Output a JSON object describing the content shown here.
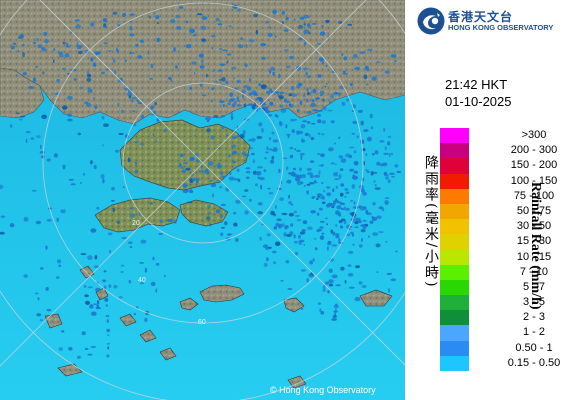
{
  "header": {
    "org_name_cn": "香港天文台",
    "org_name_en": "HONG KONG OBSERVATORY",
    "logo_icon": "hko-logo-icon"
  },
  "timestamp": {
    "time": "21:42 HKT",
    "date": "01-10-2025"
  },
  "legend": {
    "title_en": "Rainfall Rate (mm/h)",
    "title_cn": "降雨率(毫米/小時)",
    "items": [
      {
        "range": ">300",
        "color": "#ff00ff"
      },
      {
        "range": "200 - 300",
        "color": "#c8007e"
      },
      {
        "range": "150 - 200",
        "color": "#e0003a"
      },
      {
        "range": "100 - 150",
        "color": "#f21b00"
      },
      {
        "range": "75 - 100",
        "color": "#ff7a00"
      },
      {
        "range": "50 - 75",
        "color": "#f0a800"
      },
      {
        "range": "30 - 50",
        "color": "#f0c200"
      },
      {
        "range": "15 - 30",
        "color": "#dfd200"
      },
      {
        "range": "10 - 15",
        "color": "#b8e800"
      },
      {
        "range": "7 - 10",
        "color": "#5cf000"
      },
      {
        "range": "5 - 7",
        "color": "#28d800"
      },
      {
        "range": "3 - 5",
        "color": "#1fb03c"
      },
      {
        "range": "2 - 3",
        "color": "#0f8f3a"
      },
      {
        "range": "1 - 2",
        "color": "#4aa6ff"
      },
      {
        "range": "0.50 - 1",
        "color": "#2a8cf2"
      },
      {
        "range": "0.15 - 0.50",
        "color": "#1ec6ff"
      }
    ]
  },
  "map": {
    "range_ring_labels": [
      "20",
      "40",
      "60"
    ],
    "copyright": "© Hong Kong Observatory",
    "sea_color": "#1fc2ea",
    "land_color": "#8c8c78",
    "rain_color": "#1a78d0"
  }
}
